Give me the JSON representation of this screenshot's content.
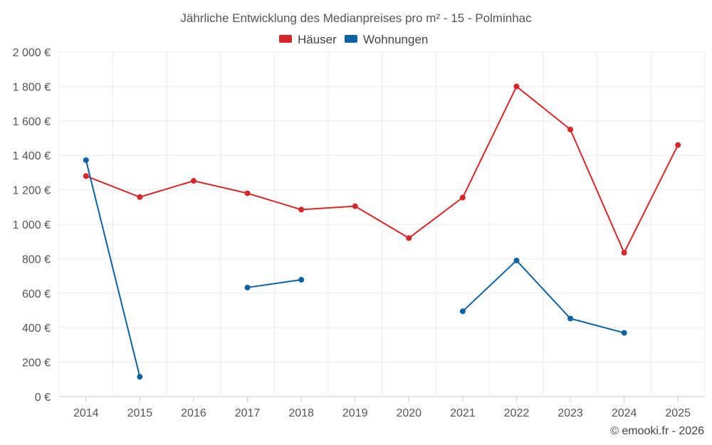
{
  "chart_data": {
    "type": "line",
    "title": "Jährliche Entwicklung des Medianpreises pro m² - 15 - Polminhac",
    "categories": [
      "2014",
      "2015",
      "2016",
      "2017",
      "2018",
      "2019",
      "2020",
      "2021",
      "2022",
      "2023",
      "2024",
      "2025"
    ],
    "ylim": [
      0,
      2000
    ],
    "yticks": [
      0,
      200,
      400,
      600,
      800,
      1000,
      1200,
      1400,
      1600,
      1800,
      2000
    ],
    "ytick_labels": [
      "0 €",
      "200 €",
      "400 €",
      "600 €",
      "800 €",
      "1 000 €",
      "1 200 €",
      "1 400 €",
      "1 600 €",
      "1 800 €",
      "2 000 €"
    ],
    "grid": true,
    "legend_position": "top-center",
    "series": [
      {
        "name": "Häuser",
        "color": "#d62728",
        "values": [
          1280,
          1158,
          1252,
          1180,
          1085,
          1105,
          920,
          1155,
          1800,
          1550,
          835,
          1460
        ]
      },
      {
        "name": "Wohnungen",
        "color": "#0b62a4",
        "values": [
          1372,
          115,
          null,
          633,
          678,
          null,
          null,
          495,
          790,
          453,
          370,
          null
        ]
      }
    ],
    "credit": "© emooki.fr - 2026"
  }
}
